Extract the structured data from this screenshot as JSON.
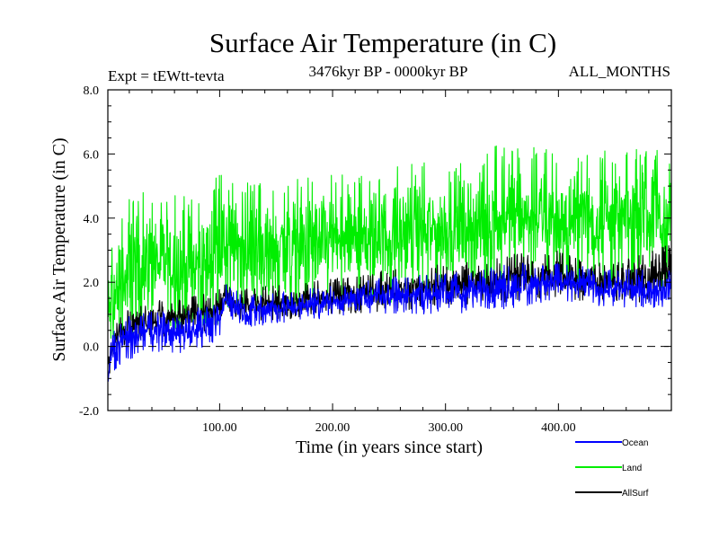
{
  "chart_data": {
    "type": "line",
    "title": "Surface Air Temperature (in C)",
    "subtitle_left": "Expt = tEWtt-tevta",
    "subtitle_center": "3476kyr BP - 0000kyr BP",
    "subtitle_right": "ALL_MONTHS",
    "xlabel": "Time (in years since start)",
    "ylabel": "Surface Air Temperature (in C)",
    "xlim": [
      1,
      500
    ],
    "ylim": [
      -2.0,
      8.0
    ],
    "x_ticks": [
      100,
      200,
      300,
      400
    ],
    "x_tick_labels": [
      "100.00",
      "200.00",
      "300.00",
      "400.00"
    ],
    "y_ticks": [
      -2,
      0,
      2,
      4,
      6,
      8
    ],
    "y_tick_labels": [
      "-2.0",
      "0.0",
      "2.0",
      "4.0",
      "6.0",
      "8.0"
    ],
    "reference_line": {
      "y": 0.0,
      "style": "dashed"
    },
    "series": [
      {
        "name": "Land",
        "color": "#00ee00",
        "envelope": {
          "x": [
            1,
            5,
            10,
            20,
            40,
            60,
            80,
            100,
            105,
            120,
            150,
            200,
            250,
            300,
            340,
            345,
            400,
            450,
            500
          ],
          "low": [
            -1.3,
            -0.8,
            -0.4,
            0.0,
            0.5,
            0.4,
            0.2,
            0.6,
            1.1,
            0.9,
            1.0,
            1.2,
            1.3,
            1.5,
            1.6,
            1.7,
            1.8,
            1.8,
            1.8
          ],
          "high": [
            3.0,
            3.5,
            4.0,
            4.7,
            4.9,
            4.8,
            4.7,
            5.4,
            5.2,
            5.1,
            5.1,
            5.4,
            5.6,
            5.8,
            6.1,
            6.4,
            6.1,
            6.1,
            6.3
          ]
        }
      },
      {
        "name": "AllSurf",
        "color": "#000000",
        "envelope": {
          "x": [
            1,
            5,
            10,
            20,
            40,
            60,
            80,
            100,
            105,
            120,
            150,
            200,
            250,
            300,
            340,
            360,
            390,
            400,
            420,
            450,
            500
          ],
          "low": [
            -1.2,
            -0.6,
            -0.2,
            0.1,
            0.3,
            0.3,
            0.4,
            0.5,
            1.1,
            0.8,
            0.8,
            1.0,
            1.1,
            1.2,
            1.3,
            1.4,
            1.5,
            1.5,
            1.4,
            1.4,
            1.3
          ],
          "high": [
            -0.2,
            0.6,
            0.9,
            1.2,
            1.4,
            1.5,
            1.6,
            1.8,
            2.0,
            1.8,
            1.9,
            2.1,
            2.4,
            2.6,
            2.7,
            2.9,
            2.9,
            3.0,
            2.7,
            2.6,
            3.2
          ]
        }
      },
      {
        "name": "Ocean",
        "color": "#0000ff",
        "envelope": {
          "x": [
            1,
            5,
            10,
            20,
            40,
            60,
            80,
            100,
            105,
            120,
            150,
            200,
            250,
            300,
            340,
            345,
            400,
            450,
            500
          ],
          "low": [
            -1.4,
            -0.9,
            -0.6,
            -0.4,
            -0.2,
            -0.3,
            -0.1,
            0.1,
            1.0,
            0.6,
            0.7,
            0.9,
            1.0,
            1.0,
            1.1,
            1.1,
            1.4,
            1.2,
            1.2
          ],
          "high": [
            -0.4,
            0.4,
            0.7,
            1.0,
            1.1,
            1.2,
            1.2,
            1.4,
            2.0,
            1.6,
            1.7,
            1.9,
            2.2,
            2.3,
            2.5,
            2.6,
            2.6,
            2.4,
            2.4
          ]
        }
      }
    ],
    "legend": [
      "Ocean",
      "Land",
      "AllSurf"
    ],
    "legend_placement": "bottom-right"
  }
}
